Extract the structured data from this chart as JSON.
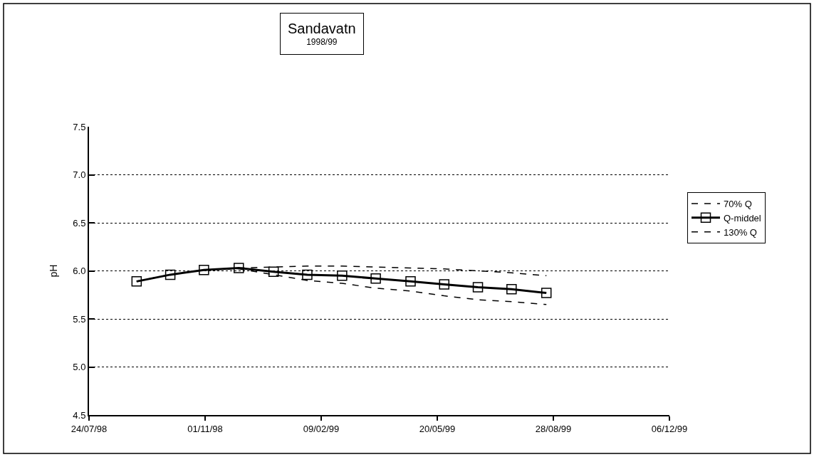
{
  "chart_data": {
    "type": "line",
    "title": "Sandavatn",
    "subtitle": "1998/99",
    "ylabel": "pH",
    "x": [
      "1998-09-03",
      "1998-10-02",
      "1998-10-31",
      "1998-11-30",
      "1998-12-30",
      "1999-01-28",
      "1999-02-27",
      "1999-03-28",
      "1999-04-27",
      "1999-05-26",
      "1999-06-24",
      "1999-07-23",
      "1999-08-22"
    ],
    "series": [
      {
        "name": "70% Q",
        "color": "#000000",
        "line_style": "dashed",
        "marker": "none",
        "values": [
          5.89,
          5.96,
          6.01,
          6.03,
          6.04,
          6.05,
          6.05,
          6.04,
          6.03,
          6.02,
          6.0,
          5.98,
          5.95
        ]
      },
      {
        "name": "Q-middel",
        "color": "#000000",
        "line_style": "solid",
        "marker": "square",
        "values": [
          5.89,
          5.96,
          6.01,
          6.03,
          5.99,
          5.96,
          5.95,
          5.92,
          5.89,
          5.86,
          5.83,
          5.81,
          5.77
        ]
      },
      {
        "name": "130% Q",
        "color": "#000000",
        "line_style": "dashed",
        "marker": "none",
        "values": [
          5.89,
          5.96,
          6.01,
          6.02,
          5.96,
          5.9,
          5.87,
          5.82,
          5.79,
          5.74,
          5.7,
          5.68,
          5.65
        ]
      }
    ],
    "xlim": [
      "1998-07-24",
      "1999-12-06"
    ],
    "xticks": [
      {
        "value": "1998-07-24",
        "label": "24/07/98"
      },
      {
        "value": "1998-11-01",
        "label": "01/11/98"
      },
      {
        "value": "1999-02-09",
        "label": "09/02/99"
      },
      {
        "value": "1999-05-20",
        "label": "20/05/99"
      },
      {
        "value": "1999-08-28",
        "label": "28/08/99"
      },
      {
        "value": "1999-12-06",
        "label": "06/12/99"
      }
    ],
    "ylim": [
      4.5,
      7.5
    ],
    "yticks": [
      {
        "value": 4.5,
        "label": "4.5"
      },
      {
        "value": 5.0,
        "label": "5.0"
      },
      {
        "value": 5.5,
        "label": "5.5"
      },
      {
        "value": 6.0,
        "label": "6.0"
      },
      {
        "value": 6.5,
        "label": "6.5"
      },
      {
        "value": 7.0,
        "label": "7.0"
      },
      {
        "value": 7.5,
        "label": "7.5"
      }
    ],
    "grid": "y",
    "legend": "right"
  }
}
